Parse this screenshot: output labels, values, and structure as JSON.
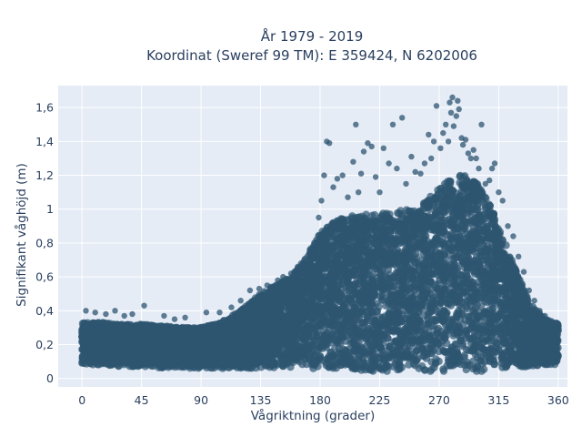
{
  "chart_data": {
    "type": "scatter",
    "title_line1": "År 1979 - 2019",
    "title_line2": "Koordinat (Sweref 99 TM): E 359424, N 6202006",
    "xlabel": "Vågriktning (grader)",
    "ylabel": "Signifikant våghöjd (m)",
    "xlim": [
      -18,
      367
    ],
    "ylim": [
      -0.05,
      1.73
    ],
    "xticks": [
      0,
      45,
      90,
      135,
      180,
      225,
      270,
      315,
      360
    ],
    "xtick_labels": [
      "0",
      "45",
      "90",
      "135",
      "180",
      "225",
      "270",
      "315",
      "360"
    ],
    "yticks": [
      0,
      0.2,
      0.4,
      0.6,
      0.8,
      1.0,
      1.2,
      1.4,
      1.6
    ],
    "ytick_labels": [
      "0",
      "0,2",
      "0,4",
      "0,6",
      "0,8",
      "1",
      "1,2",
      "1,4",
      "1,6"
    ],
    "grid": true,
    "marker_color": "#2e5671",
    "plot_bgcolor": "#e5ecf6",
    "envelope": {
      "direction_deg": [
        0,
        15,
        30,
        45,
        60,
        75,
        90,
        105,
        120,
        135,
        150,
        160,
        170,
        180,
        190,
        200,
        210,
        220,
        230,
        240,
        250,
        260,
        270,
        280,
        290,
        300,
        310,
        320,
        330,
        340,
        350,
        360
      ],
      "max_height_m": [
        0.33,
        0.33,
        0.32,
        0.32,
        0.31,
        0.3,
        0.3,
        0.33,
        0.4,
        0.5,
        0.57,
        0.62,
        0.72,
        0.86,
        0.92,
        0.96,
        0.97,
        0.97,
        0.98,
        0.99,
        1.0,
        1.05,
        1.12,
        1.2,
        1.2,
        1.15,
        1.0,
        0.8,
        0.6,
        0.43,
        0.35,
        0.32
      ],
      "min_height_m": [
        0.08,
        0.08,
        0.07,
        0.07,
        0.06,
        0.06,
        0.06,
        0.06,
        0.06,
        0.06,
        0.06,
        0.06,
        0.06,
        0.05,
        0.05,
        0.04,
        0.04,
        0.04,
        0.04,
        0.04,
        0.04,
        0.04,
        0.04,
        0.04,
        0.04,
        0.04,
        0.05,
        0.05,
        0.06,
        0.07,
        0.08,
        0.08
      ]
    },
    "outliers": [
      [
        3,
        0.4
      ],
      [
        10,
        0.39
      ],
      [
        18,
        0.38
      ],
      [
        25,
        0.4
      ],
      [
        32,
        0.37
      ],
      [
        38,
        0.38
      ],
      [
        47,
        0.43
      ],
      [
        62,
        0.37
      ],
      [
        70,
        0.35
      ],
      [
        78,
        0.36
      ],
      [
        94,
        0.39
      ],
      [
        104,
        0.39
      ],
      [
        113,
        0.42
      ],
      [
        120,
        0.46
      ],
      [
        127,
        0.52
      ],
      [
        134,
        0.53
      ],
      [
        140,
        0.55
      ],
      [
        148,
        0.58
      ],
      [
        152,
        0.6
      ],
      [
        158,
        0.62
      ],
      [
        163,
        0.66
      ],
      [
        168,
        0.7
      ],
      [
        172,
        0.76
      ],
      [
        177,
        0.82
      ],
      [
        179,
        0.95
      ],
      [
        181,
        1.05
      ],
      [
        183,
        1.2
      ],
      [
        185,
        1.4
      ],
      [
        187,
        1.39
      ],
      [
        190,
        1.13
      ],
      [
        193,
        1.18
      ],
      [
        197,
        1.2
      ],
      [
        201,
        1.07
      ],
      [
        205,
        1.28
      ],
      [
        207,
        1.5
      ],
      [
        209,
        1.1
      ],
      [
        211,
        1.21
      ],
      [
        213,
        1.34
      ],
      [
        216,
        1.39
      ],
      [
        219,
        1.37
      ],
      [
        222,
        1.19
      ],
      [
        225,
        1.1
      ],
      [
        228,
        1.36
      ],
      [
        232,
        1.27
      ],
      [
        235,
        1.5
      ],
      [
        238,
        1.24
      ],
      [
        242,
        1.54
      ],
      [
        245,
        1.15
      ],
      [
        249,
        1.31
      ],
      [
        252,
        1.22
      ],
      [
        256,
        1.21
      ],
      [
        259,
        1.27
      ],
      [
        262,
        1.44
      ],
      [
        264,
        1.3
      ],
      [
        266,
        1.4
      ],
      [
        268,
        1.61
      ],
      [
        271,
        1.36
      ],
      [
        273,
        1.45
      ],
      [
        275,
        1.5
      ],
      [
        277,
        1.4
      ],
      [
        278,
        1.63
      ],
      [
        279,
        1.57
      ],
      [
        280,
        1.66
      ],
      [
        281,
        1.49
      ],
      [
        283,
        1.55
      ],
      [
        284,
        1.64
      ],
      [
        285,
        1.59
      ],
      [
        287,
        1.42
      ],
      [
        288,
        1.38
      ],
      [
        290,
        1.41
      ],
      [
        292,
        1.33
      ],
      [
        294,
        1.3
      ],
      [
        296,
        1.35
      ],
      [
        298,
        1.3
      ],
      [
        300,
        1.24
      ],
      [
        302,
        1.5
      ],
      [
        305,
        1.15
      ],
      [
        308,
        1.17
      ],
      [
        310,
        1.24
      ],
      [
        312,
        1.27
      ],
      [
        315,
        1.1
      ],
      [
        318,
        1.05
      ],
      [
        322,
        0.9
      ],
      [
        326,
        0.84
      ],
      [
        330,
        0.72
      ],
      [
        334,
        0.63
      ],
      [
        338,
        0.52
      ],
      [
        342,
        0.46
      ],
      [
        346,
        0.4
      ],
      [
        350,
        0.37
      ],
      [
        355,
        0.34
      ],
      [
        359,
        0.33
      ]
    ]
  }
}
